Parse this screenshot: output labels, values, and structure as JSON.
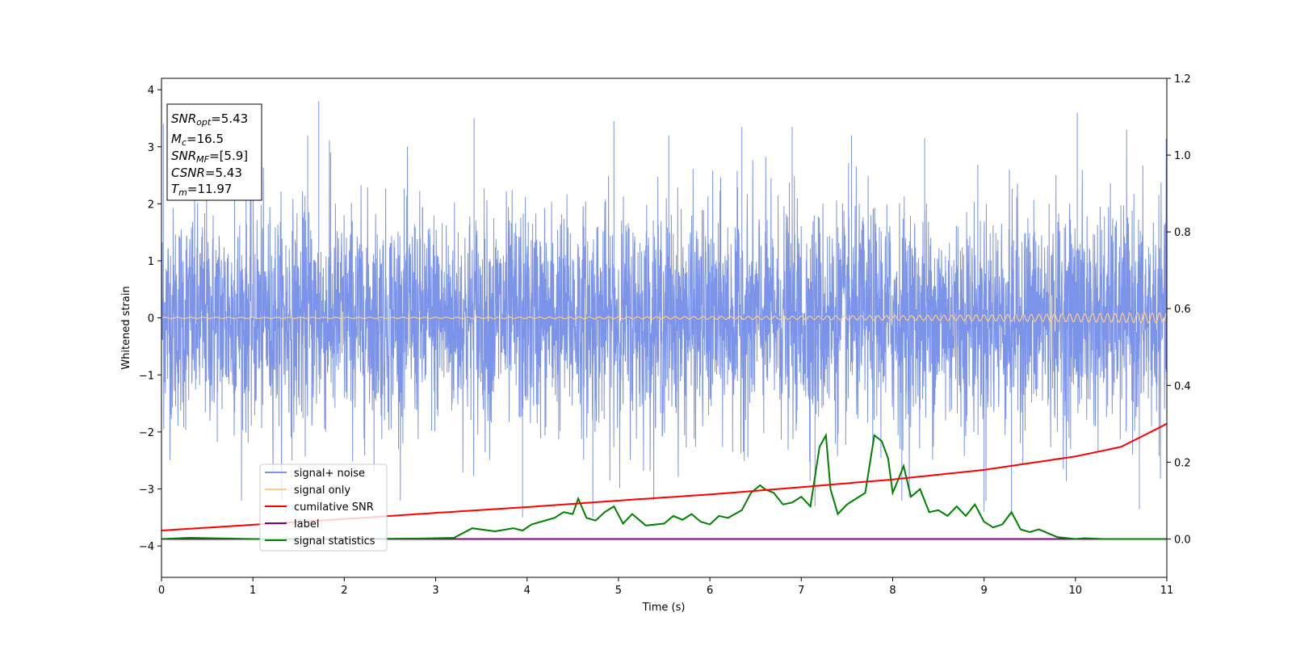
{
  "chart_data": {
    "type": "line",
    "xlabel": "Time (s)",
    "ylabel": "Whitened strain",
    "xlim": [
      0,
      11
    ],
    "ylim": [
      -4.55,
      4.2
    ],
    "y2lim": [
      -0.1,
      1.2
    ],
    "x_ticks": [
      "0",
      "1",
      "2",
      "3",
      "4",
      "5",
      "6",
      "7",
      "8",
      "9",
      "10",
      "11"
    ],
    "y_ticks": [
      "4",
      "3",
      "2",
      "1",
      "0",
      "−1",
      "−2",
      "−3",
      "−4"
    ],
    "y2_ticks": [
      "1.2",
      "1.0",
      "0.8",
      "0.6",
      "0.4",
      "0.2",
      "0.0"
    ],
    "annotation": {
      "snr_opt": {
        "sym": "SNR",
        "sub": "opt",
        "val": "=5.43"
      },
      "mc": {
        "sym": "M",
        "sub": "c",
        "val": "=16.5"
      },
      "snr_mf": {
        "sym": "SNR",
        "sub": "MF",
        "val": "=[5.9]"
      },
      "csnr": {
        "sym": "CSNR",
        "val": "=5.43"
      },
      "tm": {
        "sym": "T",
        "sub": "m",
        "val": "=11.97"
      }
    },
    "legend": {
      "placement": "lower-left",
      "items": [
        {
          "label": "signal+ noise",
          "color": "#7b93e8"
        },
        {
          "label": "signal only",
          "color": "#ffcd85"
        },
        {
          "label": "cumilative SNR",
          "color": "#ff0000"
        },
        {
          "label": "label",
          "color": "#800080"
        },
        {
          "label": "signal statistics",
          "color": "#008000"
        }
      ]
    },
    "series": [
      {
        "name": "signal+ noise",
        "axis": "left",
        "color": "#7b93e8",
        "description_range": [
          -3.5,
          3.8
        ],
        "peaks_positive": [
          [
            0.02,
            3.4
          ],
          [
            0.8,
            3.1
          ],
          [
            1.6,
            3.2
          ],
          [
            1.72,
            3.8
          ],
          [
            1.85,
            2.9
          ],
          [
            3.42,
            3.5
          ],
          [
            4.95,
            3.45
          ],
          [
            5.55,
            3.2
          ],
          [
            6.35,
            3.35
          ],
          [
            6.9,
            3.35
          ],
          [
            7.55,
            3.2
          ],
          [
            8.35,
            3.15
          ],
          [
            10.02,
            3.6
          ]
        ],
        "peaks_negative": [
          [
            3.95,
            -3.5
          ],
          [
            4.72,
            -3.5
          ],
          [
            7.15,
            -3.3
          ],
          [
            8.1,
            -3.2
          ],
          [
            9.0,
            -3.4
          ],
          [
            9.3,
            -3.45
          ],
          [
            10.7,
            -3.35
          ]
        ]
      },
      {
        "name": "signal only",
        "axis": "left",
        "color": "#ffcd85",
        "amplitude_start": 0.01,
        "amplitude_end": 0.09
      },
      {
        "name": "cumilative SNR",
        "axis": "right",
        "color": "#ff0000",
        "x": [
          0,
          1,
          2,
          3,
          4,
          5,
          6,
          7,
          8,
          9,
          10,
          10.5,
          11
        ],
        "values": [
          0.022,
          0.037,
          0.052,
          0.068,
          0.083,
          0.1,
          0.116,
          0.135,
          0.155,
          0.18,
          0.215,
          0.24,
          0.3
        ]
      },
      {
        "name": "label",
        "axis": "right",
        "color": "#800080",
        "x": [
          0,
          11
        ],
        "values": [
          0.0,
          0.0
        ]
      },
      {
        "name": "signal statistics",
        "axis": "right",
        "color": "#008000",
        "x": [
          0,
          0.3,
          1,
          2,
          2.8,
          3.2,
          3.4,
          3.65,
          3.85,
          3.95,
          4.05,
          4.3,
          4.4,
          4.5,
          4.56,
          4.65,
          4.75,
          4.85,
          4.95,
          5.05,
          5.15,
          5.3,
          5.5,
          5.6,
          5.7,
          5.8,
          5.9,
          6.0,
          6.1,
          6.2,
          6.35,
          6.45,
          6.55,
          6.6,
          6.7,
          6.8,
          6.9,
          7.0,
          7.1,
          7.2,
          7.27,
          7.32,
          7.4,
          7.5,
          7.6,
          7.7,
          7.8,
          7.88,
          7.95,
          8.0,
          8.07,
          8.12,
          8.2,
          8.3,
          8.4,
          8.5,
          8.6,
          8.7,
          8.8,
          8.9,
          9.0,
          9.1,
          9.2,
          9.3,
          9.4,
          9.5,
          9.6,
          9.8,
          10.0,
          10.1,
          10.3,
          11
        ],
        "values": [
          0.0,
          0.003,
          0.0,
          0.0,
          0.001,
          0.003,
          0.028,
          0.02,
          0.028,
          0.022,
          0.038,
          0.055,
          0.07,
          0.065,
          0.105,
          0.055,
          0.048,
          0.07,
          0.085,
          0.04,
          0.065,
          0.035,
          0.04,
          0.06,
          0.05,
          0.065,
          0.045,
          0.038,
          0.06,
          0.055,
          0.075,
          0.12,
          0.14,
          0.13,
          0.12,
          0.09,
          0.095,
          0.11,
          0.085,
          0.24,
          0.27,
          0.13,
          0.065,
          0.09,
          0.105,
          0.12,
          0.27,
          0.255,
          0.21,
          0.12,
          0.16,
          0.19,
          0.11,
          0.13,
          0.07,
          0.075,
          0.06,
          0.085,
          0.06,
          0.09,
          0.045,
          0.03,
          0.038,
          0.07,
          0.025,
          0.018,
          0.025,
          0.005,
          0.0,
          0.002,
          0.0,
          0.0
        ]
      }
    ]
  }
}
